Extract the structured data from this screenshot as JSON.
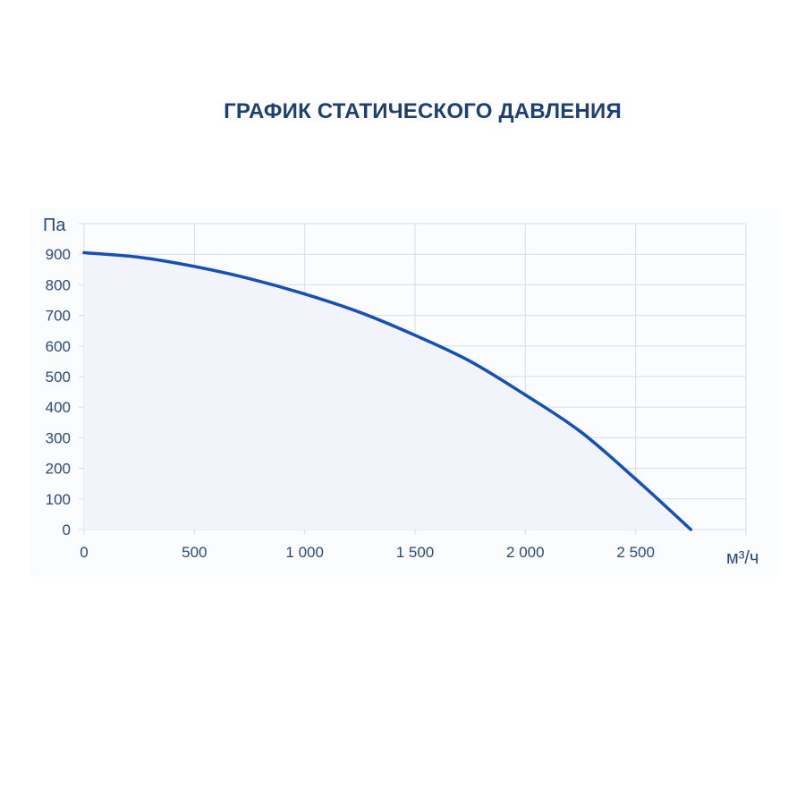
{
  "chart_data": {
    "type": "area",
    "title": "ГРАФИК СТАТИЧЕСКОГО ДАВЛЕНИЯ",
    "xlabel": "м³/ч",
    "ylabel": "Па",
    "xlim": [
      0,
      3000
    ],
    "ylim": [
      0,
      1000
    ],
    "x_ticks": [
      0,
      500,
      1000,
      1500,
      2000,
      2500
    ],
    "x_tick_labels": [
      "0",
      "500",
      "1 000",
      "1 500",
      "2 000",
      "2 500"
    ],
    "y_ticks": [
      0,
      100,
      200,
      300,
      400,
      500,
      600,
      700,
      800,
      900
    ],
    "y_tick_labels": [
      "0",
      "100",
      "200",
      "300",
      "400",
      "500",
      "600",
      "700",
      "800",
      "900"
    ],
    "grid": true,
    "series": [
      {
        "x": [
          0,
          250,
          500,
          750,
          1000,
          1250,
          1500,
          1750,
          2000,
          2250,
          2500,
          2750
        ],
        "y": [
          905,
          890,
          860,
          820,
          770,
          710,
          635,
          550,
          440,
          320,
          165,
          0
        ]
      }
    ],
    "colors": {
      "line": "#1550b8",
      "fill": "#f1f4fa",
      "grid": "#d8dde8",
      "text": "#2a4a7a",
      "title": "#1d3f74"
    }
  }
}
